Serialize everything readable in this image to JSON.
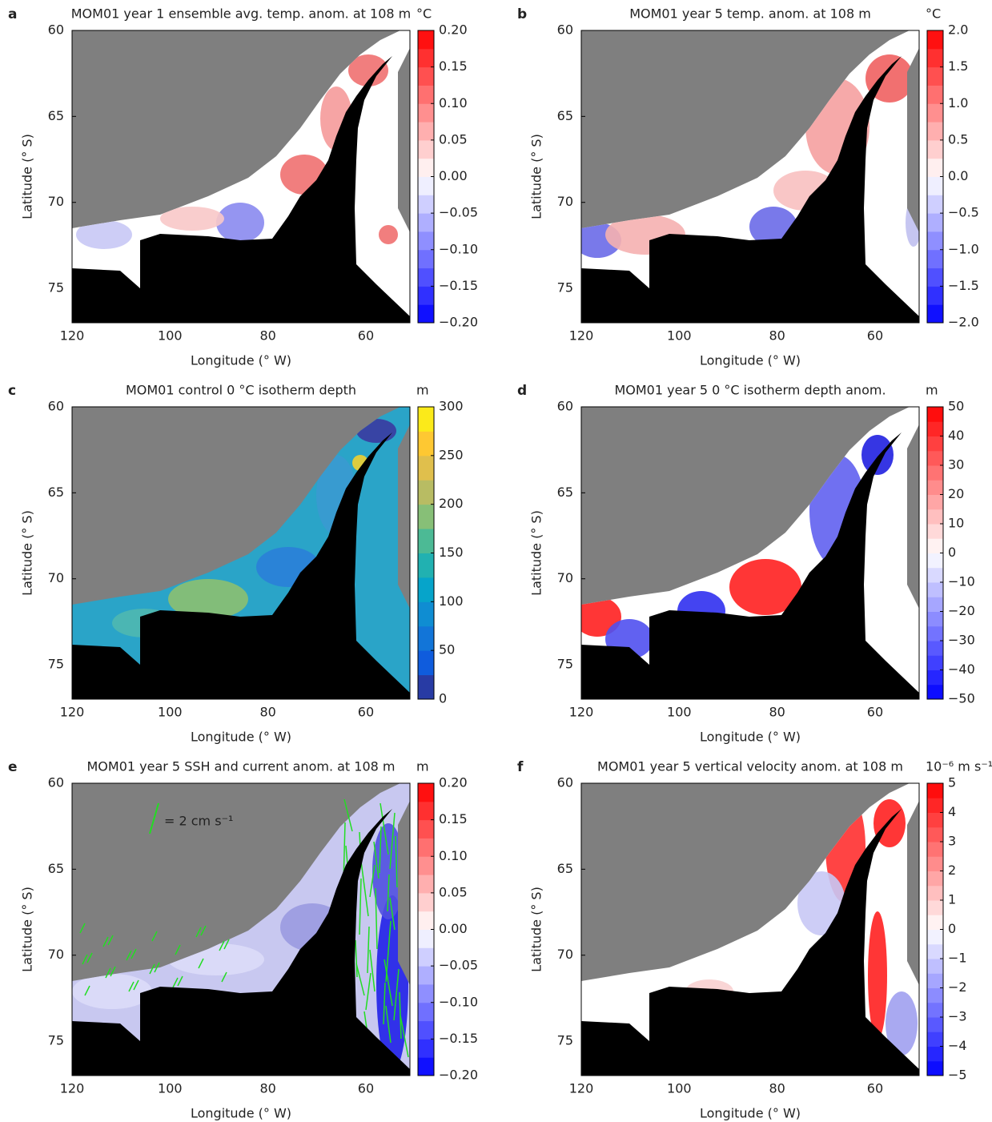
{
  "chart_data": [
    {
      "type": "map",
      "panel": "a",
      "title": "MOM01 year 1 ensemble avg. temp. anom. at 108 m",
      "xlabel": "Longitude (° W)",
      "ylabel": "Latitude (° S)",
      "xlim": [
        120,
        51
      ],
      "ylim": [
        60,
        77
      ],
      "xticks": [
        120,
        100,
        80,
        60
      ],
      "yticks": [
        60,
        65,
        70,
        75
      ],
      "colorbar_label": "°C",
      "colormap": "bwr",
      "clim": [
        -0.2,
        0.2
      ],
      "cticks": [
        {
          "value": 0.2,
          "label": "0.20"
        },
        {
          "value": 0.15,
          "label": "0.15"
        },
        {
          "value": 0.1,
          "label": "0.10"
        },
        {
          "value": 0.05,
          "label": "0.05"
        },
        {
          "value": 0,
          "label": "0.00"
        },
        {
          "value": -0.05,
          "label": "−0.05"
        },
        {
          "value": -0.1,
          "label": "−0.10"
        },
        {
          "value": -0.15,
          "label": "−0.15"
        },
        {
          "value": -0.2,
          "label": "−0.20"
        }
      ]
    },
    {
      "type": "map",
      "panel": "b",
      "title": "MOM01 year 5 temp. anom. at 108 m",
      "xlabel": "Longitude (° W)",
      "ylabel": "Latitude (° S)",
      "xlim": [
        120,
        51
      ],
      "ylim": [
        60,
        77
      ],
      "xticks": [
        120,
        100,
        80,
        60
      ],
      "yticks": [
        60,
        65,
        70,
        75
      ],
      "colorbar_label": "°C",
      "colormap": "bwr",
      "clim": [
        -2,
        2
      ],
      "cticks": [
        {
          "value": 2,
          "label": "2.0"
        },
        {
          "value": 1.5,
          "label": "1.5"
        },
        {
          "value": 1,
          "label": "1.0"
        },
        {
          "value": 0.5,
          "label": "0.5"
        },
        {
          "value": 0,
          "label": "0.0"
        },
        {
          "value": -0.5,
          "label": "−0.5"
        },
        {
          "value": -1,
          "label": "−1.0"
        },
        {
          "value": -1.5,
          "label": "−1.5"
        },
        {
          "value": -2,
          "label": "−2.0"
        }
      ]
    },
    {
      "type": "map",
      "panel": "c",
      "title": "MOM01 control 0 °C isotherm depth",
      "xlabel": "Longitude (° W)",
      "ylabel": "Latitude (° S)",
      "xlim": [
        120,
        51
      ],
      "ylim": [
        60,
        77
      ],
      "xticks": [
        120,
        100,
        80,
        60
      ],
      "yticks": [
        60,
        65,
        70,
        75
      ],
      "colorbar_label": "m",
      "colormap": "parula",
      "clim": [
        0,
        300
      ],
      "cticks": [
        300,
        250,
        200,
        150,
        100,
        50,
        0
      ]
    },
    {
      "type": "map",
      "panel": "d",
      "title": "MOM01 year 5 0 °C isotherm depth anom.",
      "xlabel": "Longitude (° W)",
      "ylabel": "Latitude (° S)",
      "xlim": [
        120,
        51
      ],
      "ylim": [
        60,
        77
      ],
      "xticks": [
        120,
        100,
        80,
        60
      ],
      "yticks": [
        60,
        65,
        70,
        75
      ],
      "colorbar_label": "m",
      "colormap": "bwr",
      "clim": [
        -50,
        50
      ],
      "cticks": [
        50,
        40,
        30,
        20,
        10,
        0,
        {
          "value": -10,
          "label": "−10"
        },
        {
          "value": -20,
          "label": "−20"
        },
        {
          "value": -30,
          "label": "−30"
        },
        {
          "value": -40,
          "label": "−40"
        },
        {
          "value": -50,
          "label": "−50"
        }
      ]
    },
    {
      "type": "map",
      "panel": "e",
      "title": "MOM01 year 5 SSH and current anom. at 108 m",
      "xlabel": "Longitude (° W)",
      "ylabel": "Latitude (° S)",
      "xlim": [
        120,
        51
      ],
      "ylim": [
        60,
        77
      ],
      "xticks": [
        120,
        100,
        80,
        60
      ],
      "yticks": [
        60,
        65,
        70,
        75
      ],
      "colorbar_label": "m",
      "colormap": "bwr",
      "clim": [
        -0.2,
        0.2
      ],
      "annotation": "= 2 cm s⁻¹",
      "cticks": [
        {
          "value": 0.2,
          "label": "0.20"
        },
        {
          "value": 0.15,
          "label": "0.15"
        },
        {
          "value": 0.1,
          "label": "0.10"
        },
        {
          "value": 0.05,
          "label": "0.05"
        },
        {
          "value": 0,
          "label": "0.00"
        },
        {
          "value": -0.05,
          "label": "−0.05"
        },
        {
          "value": -0.1,
          "label": "−0.10"
        },
        {
          "value": -0.15,
          "label": "−0.15"
        },
        {
          "value": -0.2,
          "label": "−0.20"
        }
      ]
    },
    {
      "type": "map",
      "panel": "f",
      "title": "MOM01 year 5 vertical velocity anom. at 108 m",
      "xlabel": "Longitude (° W)",
      "ylabel": "Latitude (° S)",
      "xlim": [
        120,
        51
      ],
      "ylim": [
        60,
        77
      ],
      "xticks": [
        120,
        100,
        80,
        60
      ],
      "yticks": [
        60,
        65,
        70,
        75
      ],
      "colorbar_label": "10⁻⁶ m s⁻¹",
      "colormap": "bwr",
      "clim": [
        -5,
        5
      ],
      "cticks": [
        5,
        4,
        3,
        2,
        1,
        0,
        {
          "value": -1,
          "label": "−1"
        },
        {
          "value": -2,
          "label": "−2"
        },
        {
          "value": -3,
          "label": "−3"
        },
        {
          "value": -4,
          "label": "−4"
        },
        {
          "value": -5,
          "label": "−5"
        }
      ]
    }
  ]
}
